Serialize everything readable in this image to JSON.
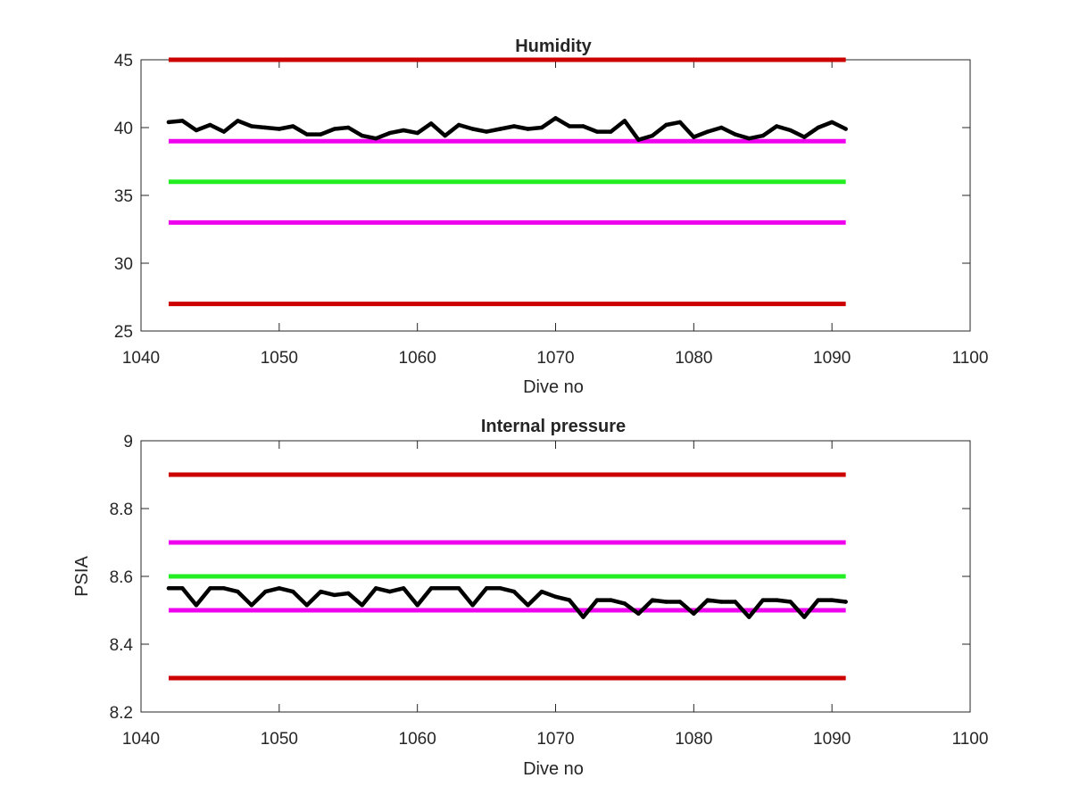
{
  "chart_data": [
    {
      "type": "line",
      "title": "Humidity",
      "xlabel": "Dive no",
      "ylabel": "",
      "xlim": [
        1040,
        1100
      ],
      "ylim": [
        25,
        45
      ],
      "xticks": [
        1040,
        1050,
        1060,
        1070,
        1080,
        1090,
        1100
      ],
      "yticks": [
        25,
        30,
        35,
        40,
        45
      ],
      "xtick_labels": [
        "1040",
        "1050",
        "1060",
        "1070",
        "1080",
        "1090",
        "1100"
      ],
      "ytick_labels": [
        "25",
        "30",
        "35",
        "40",
        "45"
      ],
      "grid": false,
      "legend": "none",
      "reference_lines": [
        {
          "y": 45,
          "x": [
            1042,
            1091
          ],
          "color": "#cc0000"
        },
        {
          "y": 39,
          "x": [
            1042,
            1091
          ],
          "color": "#ee00ee"
        },
        {
          "y": 36,
          "x": [
            1042,
            1091
          ],
          "color": "#22ee22"
        },
        {
          "y": 33,
          "x": [
            1042,
            1091
          ],
          "color": "#ee00ee"
        },
        {
          "y": 27,
          "x": [
            1042,
            1091
          ],
          "color": "#cc0000"
        }
      ],
      "series": [
        {
          "color": "#000000",
          "x": [
            1042,
            1043,
            1044,
            1045,
            1046,
            1047,
            1048,
            1049,
            1050,
            1051,
            1052,
            1053,
            1054,
            1055,
            1056,
            1057,
            1058,
            1059,
            1060,
            1061,
            1062,
            1063,
            1064,
            1065,
            1066,
            1067,
            1068,
            1069,
            1070,
            1071,
            1072,
            1073,
            1074,
            1075,
            1076,
            1077,
            1078,
            1079,
            1080,
            1081,
            1082,
            1083,
            1084,
            1085,
            1086,
            1087,
            1088,
            1089,
            1090,
            1091
          ],
          "values": [
            40.4,
            40.5,
            39.8,
            40.2,
            39.7,
            40.5,
            40.1,
            40.0,
            39.9,
            40.1,
            39.5,
            39.5,
            39.9,
            40.0,
            39.4,
            39.2,
            39.6,
            39.8,
            39.6,
            40.3,
            39.4,
            40.2,
            39.9,
            39.7,
            39.9,
            40.1,
            39.9,
            40.0,
            40.7,
            40.1,
            40.1,
            39.7,
            39.7,
            40.5,
            39.1,
            39.4,
            40.2,
            40.4,
            39.3,
            39.7,
            40.0,
            39.5,
            39.2,
            39.4,
            40.1,
            39.8,
            39.3,
            40.0,
            40.4,
            39.9
          ]
        }
      ]
    },
    {
      "type": "line",
      "title": "Internal pressure",
      "xlabel": "Dive no",
      "ylabel": "PSIA",
      "xlim": [
        1040,
        1100
      ],
      "ylim": [
        8.2,
        9.0
      ],
      "xticks": [
        1040,
        1050,
        1060,
        1070,
        1080,
        1090,
        1100
      ],
      "yticks": [
        8.2,
        8.4,
        8.6,
        8.8,
        9.0
      ],
      "xtick_labels": [
        "1040",
        "1050",
        "1060",
        "1070",
        "1080",
        "1090",
        "1100"
      ],
      "ytick_labels": [
        "8.2",
        "8.4",
        "8.6",
        "8.8",
        "9"
      ],
      "grid": false,
      "legend": "none",
      "reference_lines": [
        {
          "y": 8.9,
          "x": [
            1042,
            1091
          ],
          "color": "#cc0000"
        },
        {
          "y": 8.7,
          "x": [
            1042,
            1091
          ],
          "color": "#ee00ee"
        },
        {
          "y": 8.6,
          "x": [
            1042,
            1091
          ],
          "color": "#22ee22"
        },
        {
          "y": 8.5,
          "x": [
            1042,
            1091
          ],
          "color": "#ee00ee"
        },
        {
          "y": 8.3,
          "x": [
            1042,
            1091
          ],
          "color": "#cc0000"
        }
      ],
      "series": [
        {
          "color": "#000000",
          "x": [
            1042,
            1043,
            1044,
            1045,
            1046,
            1047,
            1048,
            1049,
            1050,
            1051,
            1052,
            1053,
            1054,
            1055,
            1056,
            1057,
            1058,
            1059,
            1060,
            1061,
            1062,
            1063,
            1064,
            1065,
            1066,
            1067,
            1068,
            1069,
            1070,
            1071,
            1072,
            1073,
            1074,
            1075,
            1076,
            1077,
            1078,
            1079,
            1080,
            1081,
            1082,
            1083,
            1084,
            1085,
            1086,
            1087,
            1088,
            1089,
            1090,
            1091
          ],
          "values": [
            8.565,
            8.565,
            8.515,
            8.565,
            8.565,
            8.555,
            8.515,
            8.555,
            8.565,
            8.555,
            8.515,
            8.555,
            8.545,
            8.55,
            8.515,
            8.565,
            8.555,
            8.565,
            8.515,
            8.565,
            8.565,
            8.565,
            8.515,
            8.565,
            8.565,
            8.555,
            8.515,
            8.555,
            8.54,
            8.53,
            8.48,
            8.53,
            8.53,
            8.52,
            8.49,
            8.53,
            8.525,
            8.525,
            8.49,
            8.53,
            8.525,
            8.525,
            8.48,
            8.53,
            8.53,
            8.525,
            8.48,
            8.53,
            8.53,
            8.525
          ]
        }
      ]
    }
  ]
}
